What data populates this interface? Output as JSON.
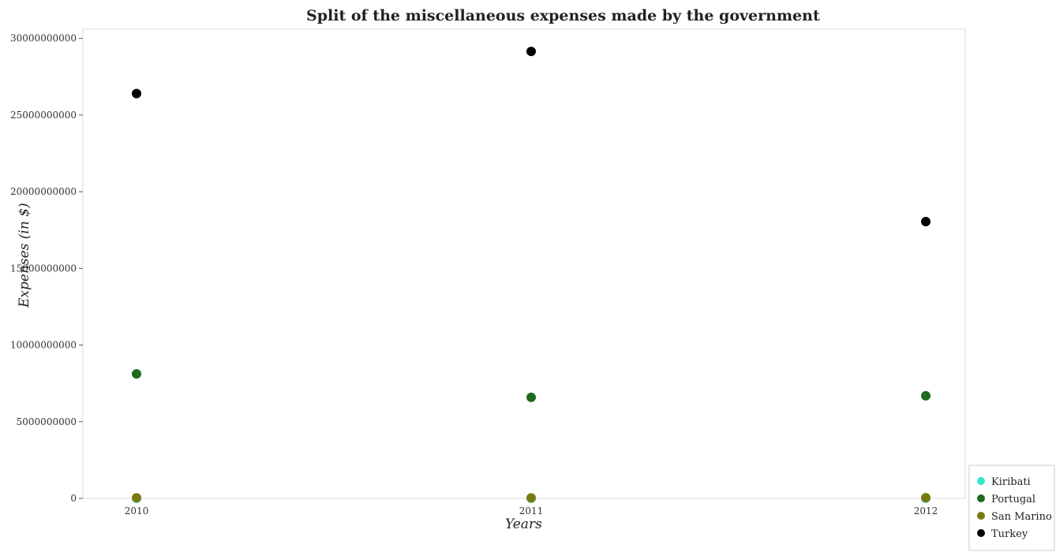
{
  "chart_data": {
    "type": "scatter",
    "title": "Split of the miscellaneous expenses made by the government",
    "xlabel": "Years",
    "ylabel": "Expenses (in $)",
    "categories": [
      "2010",
      "2011",
      "2012"
    ],
    "ylim": [
      0,
      30600000000
    ],
    "yticks": [
      0,
      5000000000,
      10000000000,
      15000000000,
      20000000000,
      25000000000,
      30000000000
    ],
    "ytick_labels": [
      "0",
      "5000000000",
      "10000000000",
      "15000000000",
      "20000000000",
      "25000000000",
      "30000000000"
    ],
    "grid": false,
    "legend_position": "bottom-right",
    "series": [
      {
        "name": "Kiribati",
        "color": "#2ee8c8",
        "values": [
          5000000,
          5000000,
          5000000
        ]
      },
      {
        "name": "Portugal",
        "color": "#1e6b1e",
        "values": [
          8120000000,
          6590000000,
          6690000000
        ]
      },
      {
        "name": "San Marino",
        "color": "#7a7a10",
        "values": [
          40000000,
          30000000,
          45000000
        ]
      },
      {
        "name": "Turkey",
        "color": "#000000",
        "values": [
          26400000000,
          29150000000,
          18050000000
        ]
      }
    ]
  }
}
